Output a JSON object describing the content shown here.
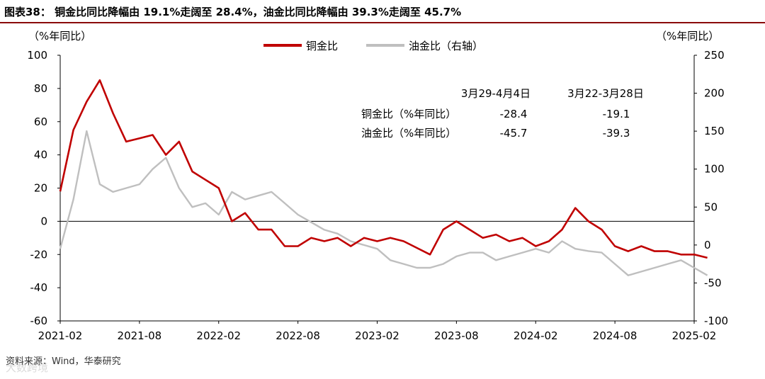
{
  "figure": {
    "title": "图表38： 铜金比同比降幅由 19.1%走阔至 28.4%，油金比同比降幅由 39.3%走阔至 45.7%",
    "source": "资料来源：Wind，华泰研究",
    "watermark": "大数跨境"
  },
  "colors": {
    "copper_gold": "#c00000",
    "oil_gold": "#bfbfbf",
    "title_rule": "#8a0b0b"
  },
  "chart_data": {
    "type": "line",
    "left_axis": {
      "unit_label": "（%年同比）",
      "ylim": [
        -60,
        100
      ],
      "ticks": [
        "100",
        "80",
        "60",
        "40",
        "20",
        "0",
        "-20",
        "-40",
        "-60"
      ]
    },
    "right_axis": {
      "unit_label": "（%年同比）",
      "ylim": [
        -100,
        250
      ],
      "ticks": [
        "250",
        "200",
        "150",
        "100",
        "50",
        "0",
        "-50",
        "-100"
      ]
    },
    "x_axis": {
      "ticks": [
        "2021-02",
        "2021-08",
        "2022-02",
        "2022-08",
        "2023-02",
        "2023-08",
        "2024-02",
        "2024-08",
        "2025-02"
      ]
    },
    "legend": {
      "placement": "top-center"
    },
    "series": [
      {
        "name": "铜金比",
        "axis": "left",
        "points": [
          [
            "2021-02",
            18
          ],
          [
            "2021-03",
            55
          ],
          [
            "2021-04",
            72
          ],
          [
            "2021-05",
            85
          ],
          [
            "2021-06",
            65
          ],
          [
            "2021-07",
            48
          ],
          [
            "2021-08",
            50
          ],
          [
            "2021-09",
            52
          ],
          [
            "2021-10",
            40
          ],
          [
            "2021-11",
            48
          ],
          [
            "2021-12",
            30
          ],
          [
            "2022-01",
            25
          ],
          [
            "2022-02",
            20
          ],
          [
            "2022-03",
            0
          ],
          [
            "2022-04",
            5
          ],
          [
            "2022-05",
            -5
          ],
          [
            "2022-06",
            -5
          ],
          [
            "2022-07",
            -15
          ],
          [
            "2022-08",
            -15
          ],
          [
            "2022-09",
            -10
          ],
          [
            "2022-10",
            -12
          ],
          [
            "2022-11",
            -10
          ],
          [
            "2022-12",
            -15
          ],
          [
            "2023-01",
            -10
          ],
          [
            "2023-02",
            -12
          ],
          [
            "2023-03",
            -10
          ],
          [
            "2023-04",
            -12
          ],
          [
            "2023-05",
            -16
          ],
          [
            "2023-06",
            -20
          ],
          [
            "2023-07",
            -5
          ],
          [
            "2023-08",
            0
          ],
          [
            "2023-09",
            -5
          ],
          [
            "2023-10",
            -10
          ],
          [
            "2023-11",
            -8
          ],
          [
            "2023-12",
            -12
          ],
          [
            "2024-01",
            -10
          ],
          [
            "2024-02",
            -15
          ],
          [
            "2024-03",
            -12
          ],
          [
            "2024-04",
            -5
          ],
          [
            "2024-05",
            8
          ],
          [
            "2024-06",
            0
          ],
          [
            "2024-07",
            -5
          ],
          [
            "2024-08",
            -15
          ],
          [
            "2024-09",
            -18
          ],
          [
            "2024-10",
            -15
          ],
          [
            "2024-11",
            -18
          ],
          [
            "2024-12",
            -18
          ],
          [
            "2025-01",
            -20
          ],
          [
            "2025-02",
            -20
          ],
          [
            "2025-03",
            -22
          ]
        ]
      },
      {
        "name": "油金比（右轴）",
        "axis": "right",
        "points": [
          [
            "2021-02",
            -5
          ],
          [
            "2021-03",
            60
          ],
          [
            "2021-04",
            150
          ],
          [
            "2021-05",
            80
          ],
          [
            "2021-06",
            70
          ],
          [
            "2021-07",
            75
          ],
          [
            "2021-08",
            80
          ],
          [
            "2021-09",
            100
          ],
          [
            "2021-10",
            115
          ],
          [
            "2021-11",
            75
          ],
          [
            "2021-12",
            50
          ],
          [
            "2022-01",
            55
          ],
          [
            "2022-02",
            40
          ],
          [
            "2022-03",
            70
          ],
          [
            "2022-04",
            60
          ],
          [
            "2022-05",
            65
          ],
          [
            "2022-06",
            70
          ],
          [
            "2022-07",
            55
          ],
          [
            "2022-08",
            40
          ],
          [
            "2022-09",
            30
          ],
          [
            "2022-10",
            20
          ],
          [
            "2022-11",
            15
          ],
          [
            "2022-12",
            5
          ],
          [
            "2023-01",
            0
          ],
          [
            "2023-02",
            -5
          ],
          [
            "2023-03",
            -20
          ],
          [
            "2023-04",
            -25
          ],
          [
            "2023-05",
            -30
          ],
          [
            "2023-06",
            -30
          ],
          [
            "2023-07",
            -25
          ],
          [
            "2023-08",
            -15
          ],
          [
            "2023-09",
            -10
          ],
          [
            "2023-10",
            -10
          ],
          [
            "2023-11",
            -20
          ],
          [
            "2023-12",
            -15
          ],
          [
            "2024-01",
            -10
          ],
          [
            "2024-02",
            -5
          ],
          [
            "2024-03",
            -10
          ],
          [
            "2024-04",
            5
          ],
          [
            "2024-05",
            -5
          ],
          [
            "2024-06",
            -8
          ],
          [
            "2024-07",
            -10
          ],
          [
            "2024-08",
            -25
          ],
          [
            "2024-09",
            -40
          ],
          [
            "2024-10",
            -35
          ],
          [
            "2024-11",
            -30
          ],
          [
            "2024-12",
            -25
          ],
          [
            "2025-01",
            -20
          ],
          [
            "2025-02",
            -30
          ],
          [
            "2025-03",
            -40
          ]
        ]
      }
    ],
    "table": {
      "headers": [
        "",
        "3月29-4月4日",
        "3月22-3月28日"
      ],
      "rows": [
        [
          "铜金比（%年同比）",
          "-28.4",
          "-19.1"
        ],
        [
          "油金比（%年同比）",
          "-45.7",
          "-39.3"
        ]
      ]
    }
  }
}
